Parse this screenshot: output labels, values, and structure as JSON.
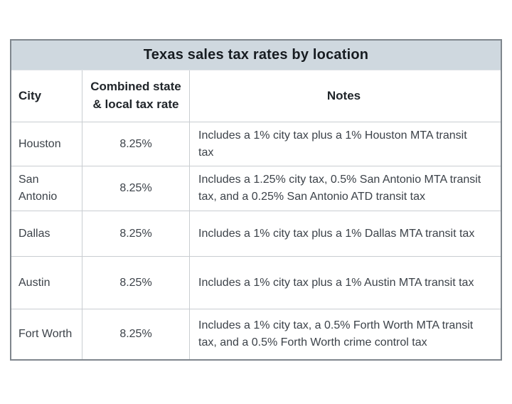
{
  "chart_data": {
    "type": "table",
    "title": "Texas sales tax rates by location",
    "columns": [
      "City",
      "Combined state & local tax rate",
      "Notes"
    ],
    "rows": [
      [
        "Houston",
        "8.25%",
        "Includes a 1% city tax plus a 1% Houston MTA transit tax"
      ],
      [
        "San Antonio",
        "8.25%",
        "Includes a 1.25% city tax, 0.5% San Antonio MTA transit tax, and a 0.25% San Antonio ATD transit tax"
      ],
      [
        "Dallas",
        "8.25%",
        "Includes a 1% city tax plus a 1% Dallas MTA transit tax"
      ],
      [
        "Austin",
        "8.25%",
        "Includes a 1% city tax plus a 1% Austin MTA transit tax"
      ],
      [
        "Fort Worth",
        "8.25%",
        "Includes a 1% city tax, a 0.5% Forth Worth MTA transit tax, and a 0.5% Forth Worth crime control tax"
      ]
    ],
    "layout": {
      "legend": "none",
      "grid": "on",
      "title_position": "top-center"
    }
  },
  "colors": {
    "title_background": "#cfd8df",
    "outer_border": "#7f868d",
    "inner_border": "#c9cdd1",
    "title_text": "#171c21",
    "header_text": "#20252a",
    "body_text": "#3c4249",
    "page_background": "#ffffff"
  }
}
